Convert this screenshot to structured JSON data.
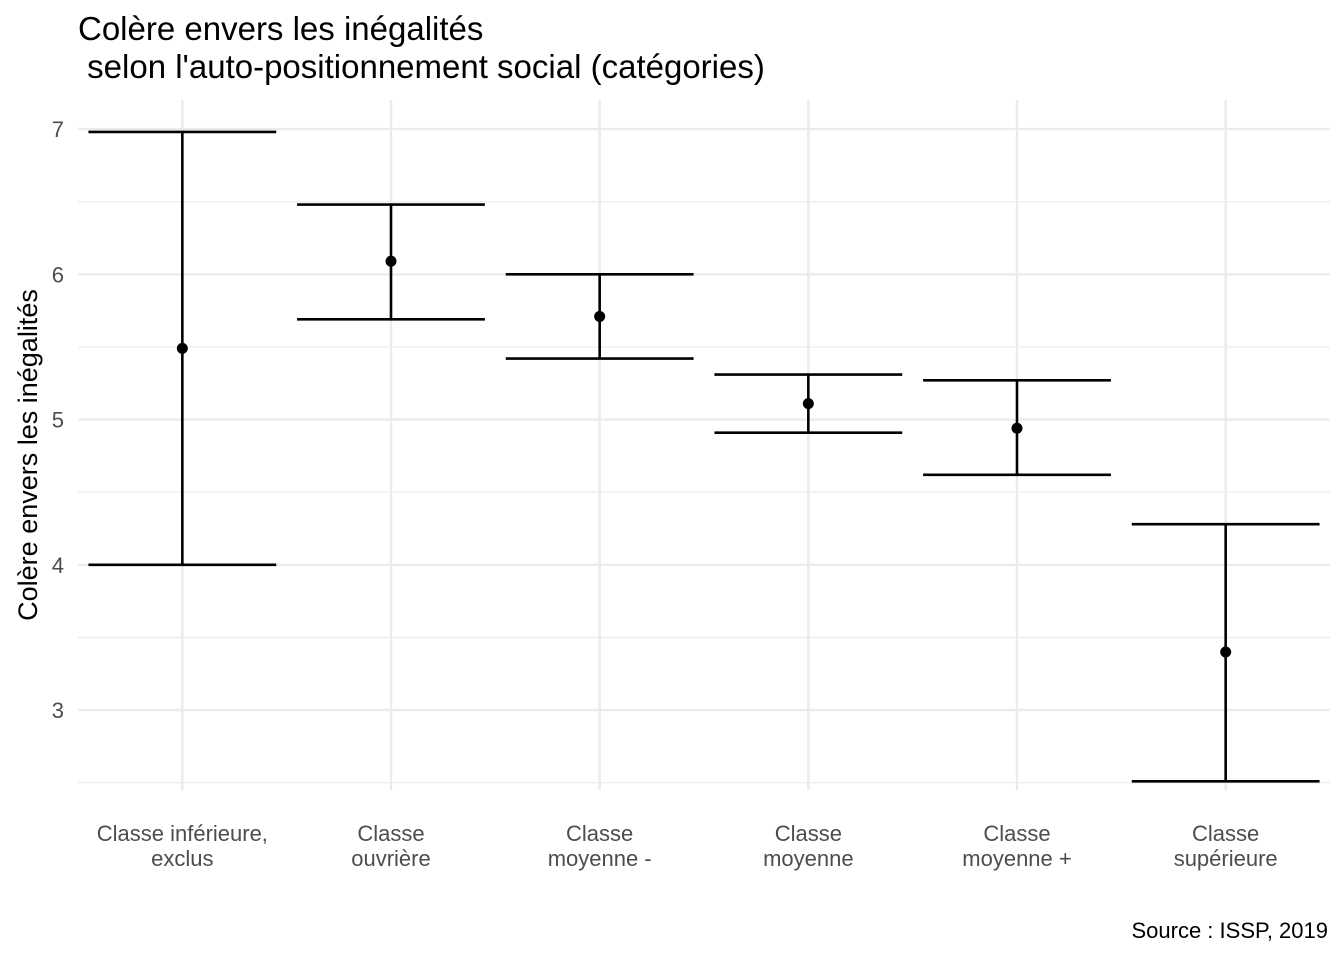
{
  "chart_data": {
    "type": "errorbar",
    "title_line1": "Colère envers les inégalités",
    "title_line2": " selon l'auto-positionnement social (catégories)",
    "ylabel": "Colère envers les inégalités",
    "xlabel": "",
    "caption": "Source : ISSP, 2019",
    "ylim": [
      2.45,
      7.2
    ],
    "y_ticks": [
      3,
      4,
      5,
      6,
      7
    ],
    "y_minor_ticks": [
      2.5,
      3.5,
      4.5,
      5.5,
      6.5
    ],
    "grid": true,
    "categories": [
      [
        "Classe inférieure,",
        "exclus"
      ],
      [
        "Classe",
        "ouvrière"
      ],
      [
        "Classe",
        "moyenne -"
      ],
      [
        "Classe",
        "moyenne"
      ],
      [
        "Classe",
        "moyenne +"
      ],
      [
        "Classe",
        "supérieure"
      ]
    ],
    "points": [
      {
        "mean": 5.49,
        "lower": 4.0,
        "upper": 6.98
      },
      {
        "mean": 6.09,
        "lower": 5.69,
        "upper": 6.48
      },
      {
        "mean": 5.71,
        "lower": 5.42,
        "upper": 6.0
      },
      {
        "mean": 5.11,
        "lower": 4.91,
        "upper": 5.31
      },
      {
        "mean": 4.94,
        "lower": 4.62,
        "upper": 5.27
      },
      {
        "mean": 3.4,
        "lower": 2.51,
        "upper": 4.28
      }
    ],
    "colors": {
      "mark": "#000000",
      "grid": "#ebebeb",
      "tick_text": "#4d4d4d"
    }
  }
}
